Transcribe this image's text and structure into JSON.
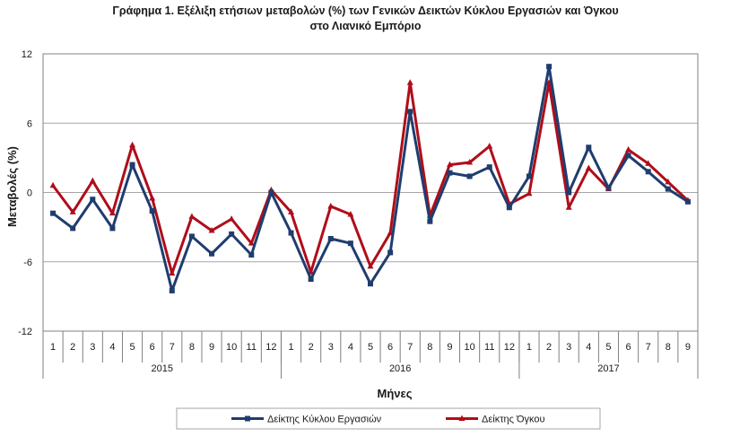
{
  "chart_data": {
    "type": "line",
    "title_line1": "Γράφημα 1. Εξέλιξη ετήσιων μεταβολών (%) των Γενικών Δεικτών Κύκλου Εργασιών και Όγκου",
    "title_line2": "στο Λιανικό Εμπόριο",
    "xlabel": "Μήνες",
    "ylabel": "Μεταβολές (%)",
    "ylim": [
      -12,
      12
    ],
    "yticks": [
      12,
      6,
      0,
      -6,
      -12
    ],
    "grid": true,
    "legend_position": "bottom",
    "x": [
      "1",
      "2",
      "3",
      "4",
      "5",
      "6",
      "7",
      "8",
      "9",
      "10",
      "11",
      "12",
      "1",
      "2",
      "3",
      "4",
      "5",
      "6",
      "7",
      "8",
      "9",
      "10",
      "11",
      "12",
      "1",
      "2",
      "3",
      "4",
      "5",
      "6",
      "7",
      "8",
      "9"
    ],
    "years": [
      {
        "label": "2015",
        "months": 12
      },
      {
        "label": "2016",
        "months": 12
      },
      {
        "label": "2017",
        "months": 9
      }
    ],
    "series": [
      {
        "name": "Δείκτης Κύκλου Εργασιών",
        "color": "#1f3d6e",
        "marker": "square",
        "values": [
          -1.8,
          -3.1,
          -0.6,
          -3.1,
          2.4,
          -1.6,
          -8.5,
          -3.8,
          -5.3,
          -3.6,
          -5.4,
          0.0,
          -3.5,
          -7.5,
          -4.0,
          -4.4,
          -7.9,
          -5.2,
          7.0,
          -2.5,
          1.7,
          1.4,
          2.2,
          -1.3,
          1.4,
          10.9,
          0.0,
          3.9,
          0.4,
          3.2,
          1.8,
          0.3,
          -0.8
        ]
      },
      {
        "name": "Δείκτης Όγκου",
        "color": "#b00d1a",
        "marker": "triangle",
        "values": [
          0.6,
          -1.7,
          1.0,
          -1.8,
          4.1,
          -0.5,
          -7.0,
          -2.1,
          -3.3,
          -2.3,
          -4.4,
          0.2,
          -1.7,
          -6.9,
          -1.2,
          -1.9,
          -6.4,
          -3.5,
          9.5,
          -2.0,
          2.4,
          2.6,
          4.0,
          -1.0,
          -0.1,
          9.5,
          -1.3,
          2.1,
          0.3,
          3.7,
          2.5,
          0.9,
          -0.7
        ]
      }
    ]
  }
}
